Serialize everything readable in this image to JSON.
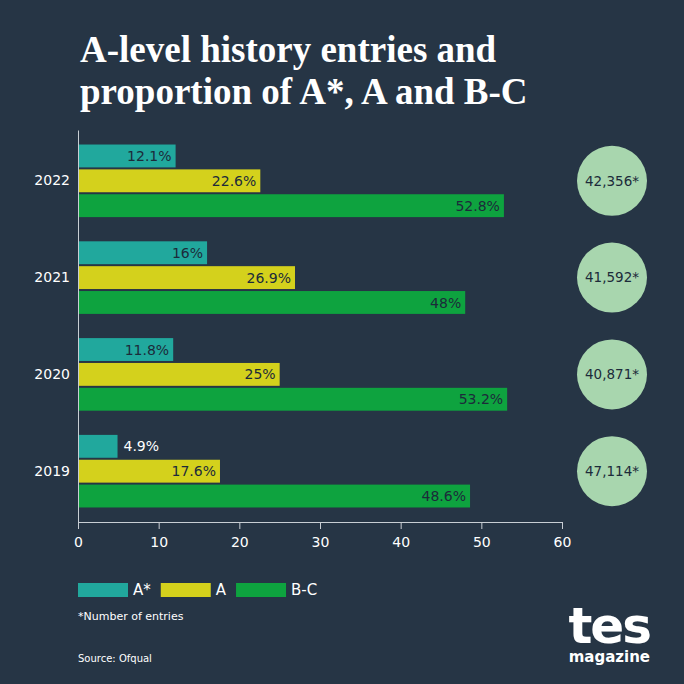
{
  "chart_data": {
    "type": "bar",
    "orientation": "horizontal",
    "title": "A-level history entries and proportion of A*, A and B-C",
    "categories": [
      "2022",
      "2021",
      "2020",
      "2019"
    ],
    "series": [
      {
        "name": "A*",
        "color": "#21a89d",
        "values": [
          12.1,
          16,
          11.8,
          4.9
        ],
        "value_labels": [
          "12.1%",
          "16%",
          "11.8%",
          "4.9%"
        ]
      },
      {
        "name": "A",
        "color": "#d4d11c",
        "values": [
          22.6,
          26.9,
          25,
          17.6
        ],
        "value_labels": [
          "22.6%",
          "26.9%",
          "25%",
          "17.6%"
        ]
      },
      {
        "name": "B-C",
        "color": "#0ea33f",
        "values": [
          52.8,
          48,
          53.2,
          48.6
        ],
        "value_labels": [
          "52.8%",
          "48%",
          "53.2%",
          "48.6%"
        ]
      }
    ],
    "entries": [
      "42,356*",
      "41,592*",
      "40,871*",
      "47,114*"
    ],
    "footnote": "*Number of entries",
    "source": "Source: Ofqual",
    "brand": "tes",
    "brand_subtitle": "magazine",
    "xlim": [
      0,
      60
    ],
    "xticks": [
      0,
      10,
      20,
      30,
      40,
      50,
      60
    ],
    "grid": false,
    "legend": "bottom-left",
    "data_labels": true
  }
}
